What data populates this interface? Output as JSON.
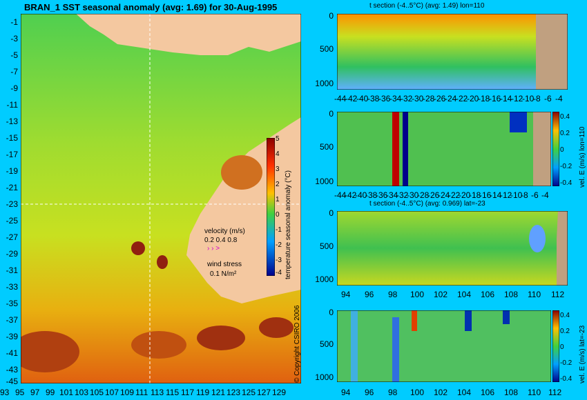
{
  "main_map": {
    "title": "BRAN_1  SST seasonal anomaly (avg: 1.69) for 30-Aug-1995",
    "lat_labels": [
      "-1",
      "-3",
      "-5",
      "-7",
      "-9",
      "-11",
      "-13",
      "-15",
      "-17",
      "-19",
      "-21",
      "-23",
      "-25",
      "-27",
      "-29",
      "-31",
      "-33",
      "-35",
      "-37",
      "-39",
      "-41",
      "-43",
      "-45"
    ],
    "lon_labels": [
      "93",
      "95",
      "97",
      "99",
      "101",
      "103",
      "105",
      "107",
      "109",
      "111",
      "113",
      "115",
      "117",
      "119",
      "121",
      "123",
      "125",
      "127",
      "129"
    ],
    "colorbar": {
      "ticks": [
        "5",
        "4",
        "3",
        "2",
        "1",
        "0",
        "-1",
        "-2",
        "-3",
        "-4"
      ],
      "label": "temperature seasonal anomaly (°C)"
    },
    "velocity_legend": {
      "title": "velocity (m/s)",
      "scale": "0.2 0.4 0.8",
      "arrows": "› › >",
      "wind_title": "wind stress",
      "wind_scale": "0.1 N/m²"
    },
    "copyright": "© Copyright CSIRO 2006"
  },
  "panel1": {
    "title": "t section (-4..5°C) (avg: 1.49) lon=110",
    "y_ticks": [
      "0",
      "500",
      "1000"
    ],
    "x_ticks": [
      "-44",
      "-42",
      "-40",
      "-38",
      "-36",
      "-34",
      "-32",
      "-30",
      "-28",
      "-26",
      "-24",
      "-22",
      "-20",
      "-18",
      "-16",
      "-14",
      "-12",
      "-10",
      "-8",
      "-6",
      "-4"
    ]
  },
  "panel2": {
    "y_ticks": [
      "0",
      "500",
      "1000"
    ],
    "x_ticks": [
      "-44",
      "-42",
      "-40",
      "-38",
      "-36",
      "-34",
      "-32",
      "-30",
      "-28",
      "-26",
      "-24",
      "-22",
      "-20",
      "-18",
      "-16",
      "-14",
      "-12",
      "-10",
      "-8",
      "-6",
      "-4"
    ],
    "colorbar_ticks": [
      "0.4",
      "0.2",
      "0",
      "-0.2",
      "-0.4"
    ],
    "colorbar_label": "vel. E (m/s) lon=110"
  },
  "panel3": {
    "title": "t section (-4..5°C) (avg: 0.969) lat=-23",
    "y_ticks": [
      "0",
      "500",
      "1000"
    ],
    "x_ticks": [
      "94",
      "96",
      "98",
      "100",
      "102",
      "104",
      "106",
      "108",
      "110",
      "112"
    ]
  },
  "panel4": {
    "y_ticks": [
      "0",
      "500",
      "1000"
    ],
    "x_ticks": [
      "94",
      "96",
      "98",
      "100",
      "102",
      "104",
      "106",
      "108",
      "110",
      "112"
    ],
    "colorbar_ticks": [
      "0.4",
      "0.2",
      "0",
      "-0.2",
      "-0.4"
    ],
    "colorbar_label": "vel. E (m/s) lat=-23"
  },
  "chart_data": [
    {
      "type": "heatmap",
      "title": "BRAN_1  SST seasonal anomaly (avg: 1.69) for 30-Aug-1995",
      "xlim": [
        93,
        130
      ],
      "ylim": [
        -45,
        0
      ],
      "colorbar_range": [
        -4,
        5
      ]
    },
    {
      "type": "heatmap",
      "title": "t section (-4..5°C) (avg: 1.49) lon=110",
      "xlim": [
        -45,
        -3
      ],
      "ylim": [
        1050,
        0
      ]
    },
    {
      "type": "heatmap",
      "xlim": [
        -45,
        -3
      ],
      "ylim": [
        1050,
        0
      ],
      "colorbar_range": [
        -0.4,
        0.4
      ]
    },
    {
      "type": "heatmap",
      "title": "t section (-4..5°C) (avg: 0.969) lat=-23",
      "xlim": [
        93,
        114
      ],
      "ylim": [
        1050,
        0
      ]
    },
    {
      "type": "heatmap",
      "xlim": [
        93,
        114
      ],
      "ylim": [
        1050,
        0
      ],
      "colorbar_range": [
        -0.4,
        0.4
      ]
    }
  ]
}
